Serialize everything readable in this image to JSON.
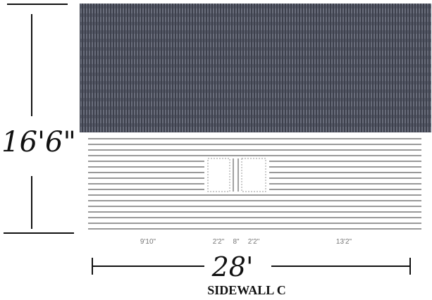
{
  "dimensions": {
    "height": "16'6\"",
    "segments": [
      "9'10\"",
      "2'2\"",
      "8\"",
      "2'2\"",
      "13'2\""
    ],
    "width": "28'"
  },
  "caption": "SIDEWALL C"
}
